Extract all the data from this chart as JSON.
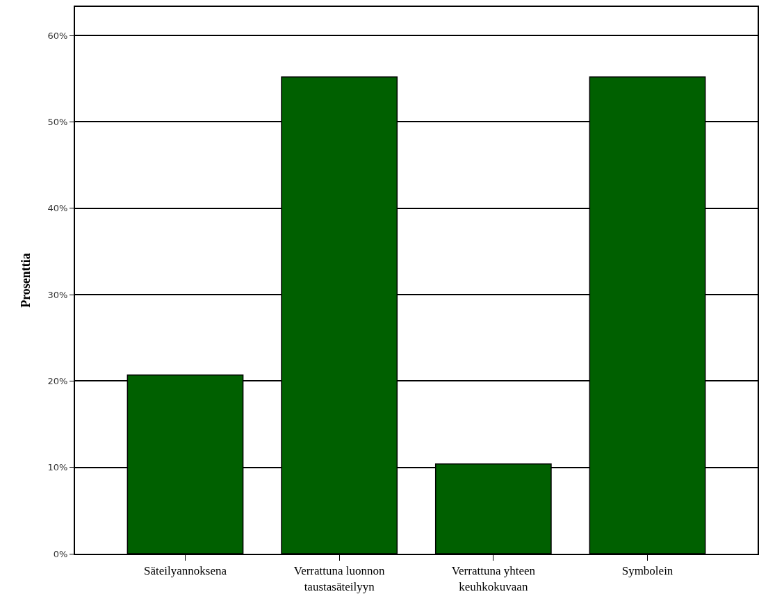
{
  "chart_data": {
    "type": "bar",
    "ylabel": "Prosenttia",
    "categories": [
      "Säteilyannoksena",
      "Verrattuna luonnon taustasäteilyyn",
      "Verrattuna yhteen keuhkokuvaan",
      "Symbolein"
    ],
    "values": [
      20.7,
      55.2,
      10.4,
      55.2
    ],
    "color": "#006000",
    "ylim": [
      0,
      63.3
    ],
    "yticks": [
      {
        "value": 0,
        "label": "0%"
      },
      {
        "value": 10,
        "label": "10%"
      },
      {
        "value": 20,
        "label": "20%"
      },
      {
        "value": 30,
        "label": "30%"
      },
      {
        "value": 40,
        "label": "40%"
      },
      {
        "value": 50,
        "label": "50%"
      },
      {
        "value": 60,
        "label": "60%"
      }
    ],
    "grid": "y"
  }
}
